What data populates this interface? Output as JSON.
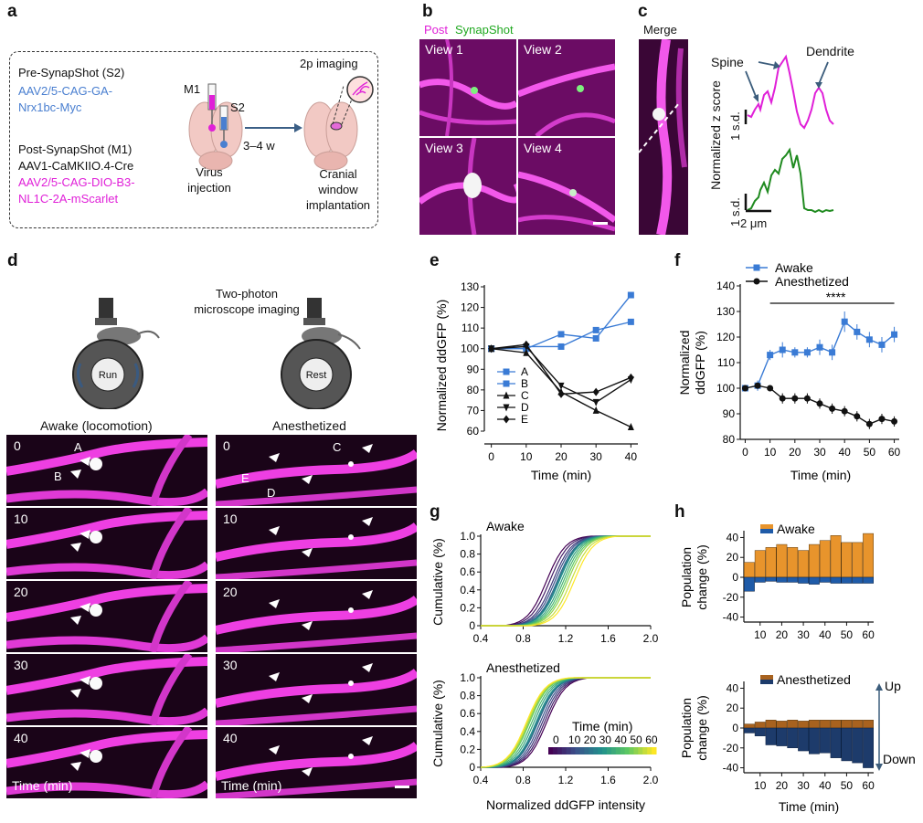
{
  "panels": [
    "a",
    "b",
    "c",
    "d",
    "e",
    "f",
    "g",
    "h"
  ],
  "a": {
    "pre_title": "Pre-SynapShot (S2)",
    "pre_virus_line1": "AAV2/5-CAG-GA-",
    "pre_virus_line2": "Nrx1bc-Myc",
    "post_title": "Post-SynapShot (M1)",
    "post_virus1": "AAV1-CaMKIIO.4-Cre",
    "post_virus2_line1": "AAV2/5-CAG-DIO-B3-",
    "post_virus2_line2": "NL1C-2A-mScarlet",
    "m1": "M1",
    "s2": "S2",
    "virus_line1": "Virus",
    "virus_line2": "injection",
    "interval": "3–4 w",
    "imaging": "2p imaging",
    "cranial_line1": "Cranial",
    "cranial_line2": "window",
    "cranial_line3": "implantation",
    "colors": {
      "pre": "#4a7fd0",
      "post": "#e020d8"
    }
  },
  "b": {
    "header_post": "Post",
    "header_synapshot": "SynapShot",
    "views": [
      "View 1",
      "View 2",
      "View 3",
      "View 4"
    ],
    "colors": {
      "post": "#e020d8",
      "synapshot": "#1fa81f"
    }
  },
  "c": {
    "merge": "Merge",
    "spine": "Spine",
    "dendrite": "Dendrite",
    "ylabel": "Normalized z score",
    "sd1": "1 s.d.",
    "sd2": "1 s.d.",
    "scale": "2 μm"
  },
  "d": {
    "imaging_line1": "Two-photon",
    "imaging_line2": "microscope imaging",
    "run": "Run",
    "rest": "Rest",
    "awake_title": "Awake (locomotion)",
    "anesth_title": "Anesthetized",
    "times": [
      "0",
      "10",
      "20",
      "30",
      "40"
    ],
    "time_label": "Time (min)",
    "left_markers": [
      "A",
      "B"
    ],
    "right_markers": [
      "C",
      "D",
      "E"
    ]
  },
  "chart_data": [
    {
      "panel": "e",
      "type": "line",
      "xlabel": "Time (min)",
      "ylabel": "Normalized ddGFP (%)",
      "ylim": [
        60,
        130
      ],
      "yticks": [
        60,
        70,
        80,
        90,
        100,
        110,
        120,
        130
      ],
      "xticks": [
        0,
        10,
        20,
        30,
        40
      ],
      "x": [
        0,
        10,
        20,
        30,
        40
      ],
      "series": [
        {
          "name": "A",
          "marker": "square",
          "color": "#3a7bd5",
          "values": [
            100,
            100,
            107,
            105,
            126
          ]
        },
        {
          "name": "B",
          "marker": "square",
          "color": "#3a7bd5",
          "values": [
            100,
            101,
            101,
            109,
            113
          ]
        },
        {
          "name": "C",
          "marker": "triangle-up",
          "color": "#111111",
          "values": [
            100,
            98,
            79,
            70,
            62
          ]
        },
        {
          "name": "D",
          "marker": "triangle-down",
          "color": "#111111",
          "values": [
            100,
            101,
            82,
            74,
            85
          ]
        },
        {
          "name": "E",
          "marker": "diamond",
          "color": "#111111",
          "values": [
            100,
            102,
            78,
            79,
            86
          ]
        }
      ]
    },
    {
      "panel": "f",
      "type": "line",
      "xlabel": "Time (min)",
      "ylabel_line1": "Normalized",
      "ylabel_line2": "ddGFP (%)",
      "ylim": [
        80,
        140
      ],
      "yticks": [
        80,
        90,
        100,
        110,
        120,
        130,
        140
      ],
      "xticks": [
        0,
        10,
        20,
        30,
        40,
        50,
        60
      ],
      "x": [
        0,
        5,
        10,
        15,
        20,
        25,
        30,
        35,
        40,
        45,
        50,
        55,
        60
      ],
      "significance": "****",
      "series": [
        {
          "name": "Awake",
          "color": "#3a7bd5",
          "values": [
            100,
            101,
            113,
            115,
            114,
            114,
            116,
            114,
            126,
            122,
            119,
            117,
            121
          ],
          "err": [
            0,
            2,
            2,
            3,
            2,
            2,
            3,
            3,
            4,
            3,
            3,
            3,
            3
          ]
        },
        {
          "name": "Anesthetized",
          "color": "#111111",
          "values": [
            100,
            101,
            100,
            96,
            96,
            96,
            94,
            92,
            91,
            89,
            86,
            88,
            87
          ],
          "err": [
            0,
            1,
            1,
            2,
            2,
            2,
            2,
            2,
            2,
            2,
            2,
            2,
            2
          ]
        }
      ]
    },
    {
      "panel": "g-awake",
      "type": "line",
      "title": "Awake",
      "ylabel": "Cumulative (%)",
      "xlim": [
        0.4,
        2.0
      ],
      "ylim": [
        0,
        1.0
      ],
      "xticks": [
        "0.4",
        "0.8",
        "1.2",
        "1.6",
        "2.0"
      ],
      "yticks": [
        "0",
        "0.2",
        "0.4",
        "0.6",
        "0.8",
        "1.0"
      ],
      "medians": [
        1.02,
        1.05,
        1.08,
        1.1,
        1.12,
        1.13,
        1.14,
        1.16,
        1.18,
        1.2,
        1.22,
        1.25,
        1.28
      ]
    },
    {
      "panel": "g-anesthetized",
      "type": "line",
      "title": "Anesthetized",
      "ylabel": "Cumulative (%)",
      "xlabel": "Normalized ddGFP intensity",
      "xlim": [
        0.4,
        2.0
      ],
      "ylim": [
        0,
        1.0
      ],
      "xticks": [
        "0.4",
        "0.8",
        "1.2",
        "1.6",
        "2.0"
      ],
      "yticks": [
        "0",
        "0.2",
        "0.4",
        "0.6",
        "0.8",
        "1.0"
      ],
      "legend_title": "Time (min)",
      "legend_ticks": [
        "0",
        "10",
        "20",
        "30",
        "40",
        "50",
        "60"
      ],
      "medians": [
        1.02,
        1.0,
        0.98,
        0.96,
        0.94,
        0.93,
        0.92,
        0.9,
        0.88,
        0.86,
        0.85,
        0.84,
        0.83
      ]
    },
    {
      "panel": "h-awake",
      "type": "bar",
      "title": "Awake",
      "ylabel_line1": "Population",
      "ylabel_line2": "change (%)",
      "ylim": [
        -45,
        45
      ],
      "yticks": [
        -40,
        -20,
        0,
        20,
        40
      ],
      "xticks": [
        10,
        20,
        30,
        40,
        50,
        60
      ],
      "x": [
        5,
        10,
        15,
        20,
        25,
        30,
        35,
        40,
        45,
        50,
        55,
        60
      ],
      "up": [
        15,
        27,
        30,
        33,
        30,
        27,
        33,
        37,
        42,
        35,
        35,
        44
      ],
      "down": [
        -14,
        -5,
        -4,
        -5,
        -5,
        -6,
        -7,
        -5,
        -6,
        -6,
        -6,
        -6
      ],
      "colors": {
        "up": "#e8942c",
        "down": "#1f5ba8"
      }
    },
    {
      "panel": "h-anesthetized",
      "type": "bar",
      "title": "Anesthetized",
      "ylabel_line1": "Population",
      "ylabel_line2": "change (%)",
      "xlabel": "Time (min)",
      "ylim": [
        -45,
        45
      ],
      "yticks": [
        -40,
        -20,
        0,
        20,
        40
      ],
      "xticks": [
        10,
        20,
        30,
        40,
        50,
        60
      ],
      "x": [
        5,
        10,
        15,
        20,
        25,
        30,
        35,
        40,
        45,
        50,
        55,
        60
      ],
      "up": [
        4,
        6,
        8,
        7,
        8,
        7,
        8,
        8,
        8,
        8,
        8,
        8
      ],
      "down": [
        -5,
        -8,
        -17,
        -18,
        -20,
        -23,
        -26,
        -25,
        -30,
        -33,
        -35,
        -40
      ],
      "arrow_up": "Up",
      "arrow_down": "Down",
      "colors": {
        "up": "#a8621f",
        "down": "#1d3b6b"
      }
    }
  ]
}
